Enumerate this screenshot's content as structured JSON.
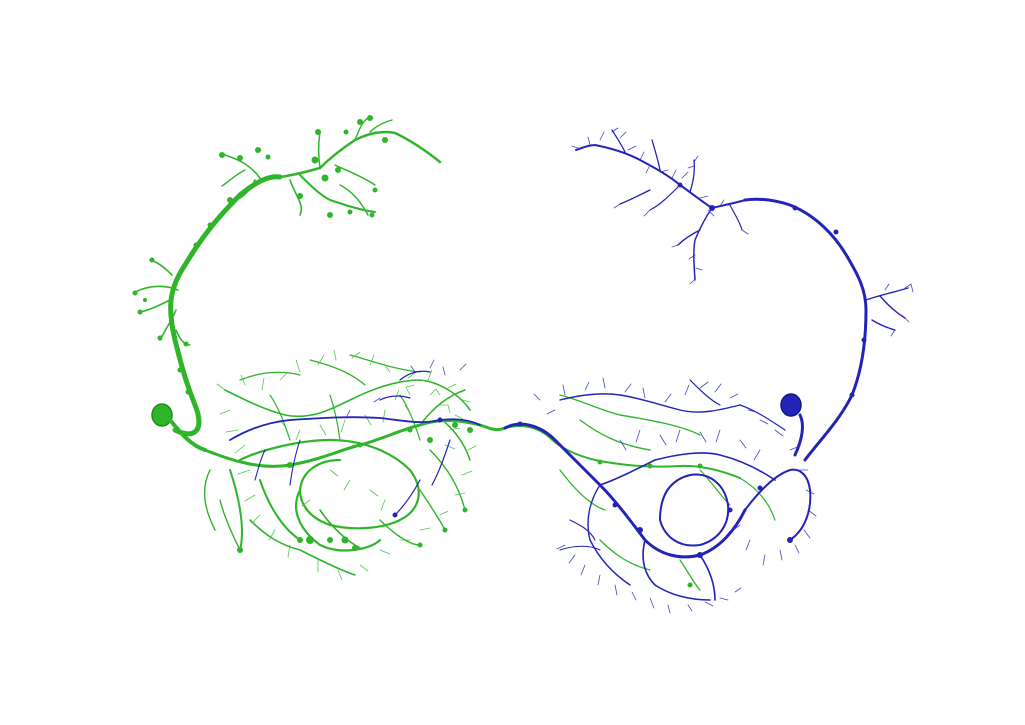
{
  "image": {
    "background": "#ffffff",
    "neurons": [
      {
        "id": "left",
        "color": "#2fb52a",
        "side": "left"
      },
      {
        "id": "right",
        "color": "#2323b8",
        "side": "right"
      }
    ]
  }
}
